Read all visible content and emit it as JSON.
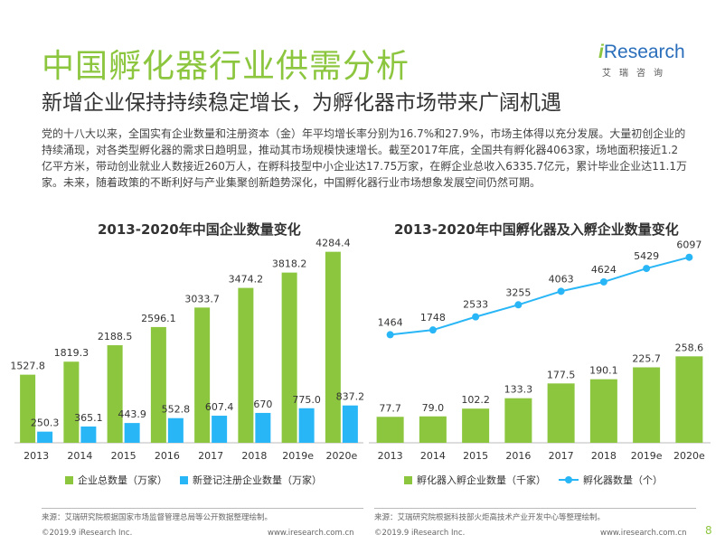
{
  "header": {
    "title": "中国孵化器行业供需分析",
    "subtitle": "新增企业保持持续稳定增长，为孵化器市场带来广阔机遇",
    "logo_prefix": "i",
    "logo_word": "Research",
    "logo_cn": "艾瑞咨询"
  },
  "body_text": "党的十八大以来，全国实有企业数量和注册资本（金）年平均增长率分别为16.7%和27.9%，市场主体得以充分发展。大量初创企业的持续涌现，对各类型孵化器的需求日趋明显，推动其市场规模快速增长。截至2017年底，全国共有孵化器4063家，场地面积接近1.2亿平方米，带动创业就业人数接近260万人，在孵科技型中小企业达17.75万家，在孵企业总收入6335.7亿元，累计毕业企业达11.1万家。未来，随着政策的不断利好与产业集聚创新趋势深化，中国孵化器行业市场想象发展空间仍然可期。",
  "chart_data": [
    {
      "type": "bar",
      "title": "2013-2020年中国企业数量变化",
      "categories": [
        "2013",
        "2014",
        "2015",
        "2016",
        "2017",
        "2018",
        "2019e",
        "2020e"
      ],
      "series": [
        {
          "name": "企业总数量（万家）",
          "values": [
            1527.8,
            1819.3,
            2188.5,
            2596.1,
            3033.7,
            3474.2,
            3818.2,
            4284.4
          ],
          "labels": [
            "1527.8",
            "1819.3",
            "2188.5",
            "2596.1",
            "3033.7",
            "3474.2",
            "3818.2",
            "4284.4"
          ],
          "color": "#8cc63f"
        },
        {
          "name": "新登记注册企业数量（万家）",
          "values": [
            250.3,
            365.1,
            443.9,
            552.8,
            607.4,
            670,
            775.0,
            837.2
          ],
          "labels": [
            "250.3",
            "365.1",
            "443.9",
            "552.8",
            "607.4",
            "670",
            "775.0",
            "837.2"
          ],
          "color": "#29b6f6"
        }
      ],
      "ylim": [
        0,
        4500
      ],
      "legend": "bottom",
      "grid": false,
      "source": "来源：艾瑞研究院根据国家市场监督管理总局等公开数据整理绘制。"
    },
    {
      "type": "bar+line",
      "title": "2013-2020年中国孵化器及入孵企业数量变化",
      "categories": [
        "2013",
        "2014",
        "2015",
        "2016",
        "2017",
        "2018",
        "2019e",
        "2020e"
      ],
      "series": [
        {
          "name": "孵化器入孵企业数量（千家）",
          "type": "bar",
          "values": [
            77.7,
            79.0,
            102.2,
            133.3,
            177.5,
            190.1,
            225.7,
            258.6
          ],
          "labels": [
            "77.7",
            "79.0",
            "102.2",
            "133.3",
            "177.5",
            "190.1",
            "225.7",
            "258.6"
          ],
          "color": "#8cc63f"
        },
        {
          "name": "孵化器数量（个）",
          "type": "line",
          "values": [
            1464,
            1748,
            2533,
            3255,
            4063,
            4624,
            5429,
            6097
          ],
          "labels": [
            "1464",
            "1748",
            "2533",
            "3255",
            "4063",
            "4624",
            "5429",
            "6097"
          ],
          "color": "#29b6f6"
        }
      ],
      "ylim_bar": [
        0,
        600
      ],
      "ylim_line": [
        -5000,
        7000
      ],
      "legend": "bottom",
      "grid": false,
      "source": "来源：艾瑞研究院根据科技部火炬高技术产业开发中心等整理绘制。"
    }
  ],
  "footer": {
    "copyright": "©2019.9 iResearch Inc.",
    "website": "www.iresearch.com.cn",
    "page": "8"
  }
}
